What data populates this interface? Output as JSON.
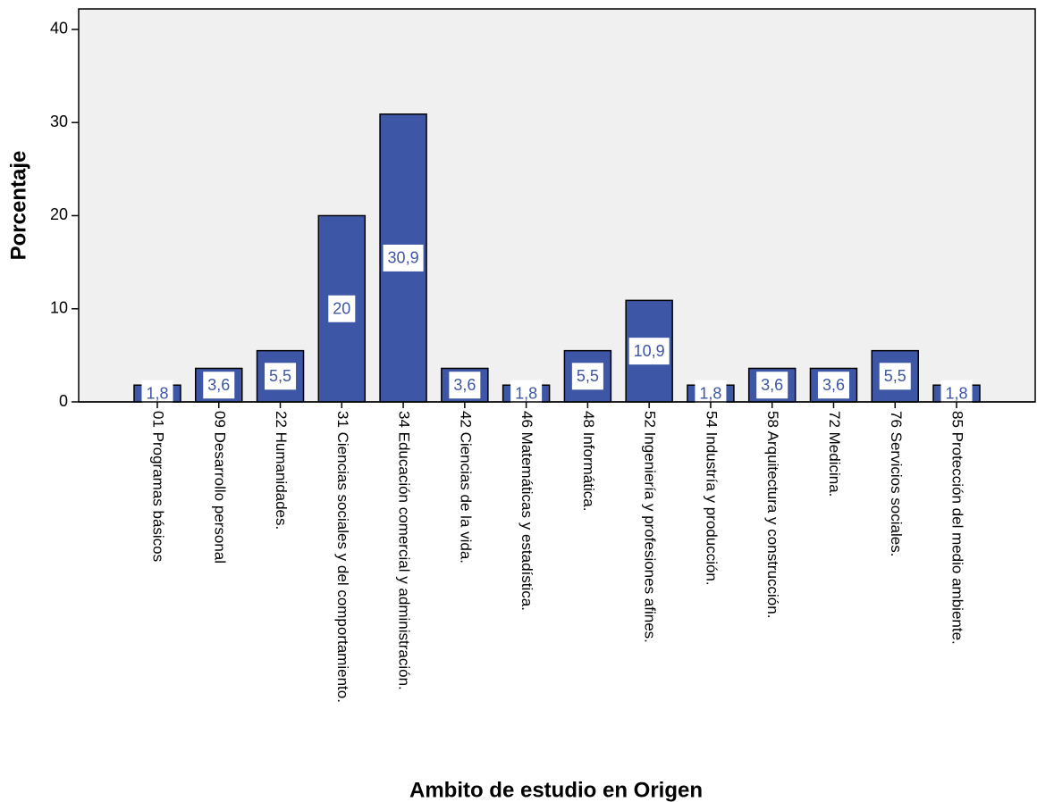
{
  "chart_data": {
    "type": "bar",
    "x_label": "Ambito de estudio en Origen",
    "y_label": "Porcentaje",
    "categories": [
      "01 Programas básicos",
      "09 Desarrollo personal",
      "22 Humanidades.",
      "31 Ciencias sociales y del comportamiento.",
      "34 Educación comercial y administración.",
      "42 Ciencias de la vida.",
      "46 Matemáticas y estadística.",
      "48 Informática.",
      "52 Ingeniería y profesiones afines.",
      "54 Industría y producción.",
      "58 Arquitectura y construcción.",
      "72 Medicina.",
      "76 Servicios sociales.",
      "85 Protección del medio ambiente."
    ],
    "values": [
      1.8,
      3.6,
      5.5,
      20,
      30.9,
      3.6,
      1.8,
      5.5,
      10.9,
      1.8,
      3.6,
      3.6,
      5.5,
      1.8
    ],
    "value_labels": [
      "1,8",
      "3,6",
      "5,5",
      "20",
      "30,9",
      "3,6",
      "1,8",
      "5,5",
      "10,9",
      "1,8",
      "3,6",
      "3,6",
      "5,5",
      "1,8"
    ],
    "color": "#3d56a6",
    "ylim": [
      0,
      42.2
    ],
    "yticks": [
      0,
      10,
      20,
      30,
      40
    ],
    "grid": false
  }
}
